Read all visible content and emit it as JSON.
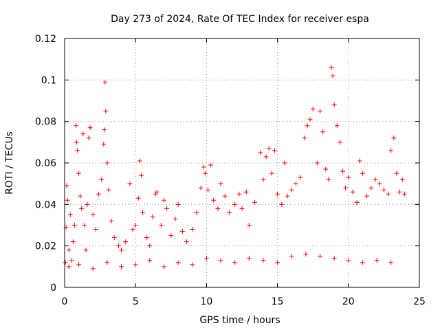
{
  "chart_data": {
    "type": "scatter",
    "title": "Day 273 of 2024, Rate Of TEC Index for receiver espa",
    "xlabel": "GPS time / hours",
    "ylabel": "ROTI / TECUs",
    "xlim": [
      0,
      25
    ],
    "ylim": [
      0,
      0.12
    ],
    "grid": true,
    "marker": "+",
    "x_ticks": [
      0,
      5,
      10,
      15,
      20,
      25
    ],
    "x_tick_labels": [
      "0",
      "5",
      "10",
      "15",
      "20",
      "25"
    ],
    "y_ticks": [
      0,
      0.02,
      0.04,
      0.06,
      0.08,
      0.1,
      0.12
    ],
    "y_tick_labels": [
      "0",
      "0.02",
      "0.04",
      "0.06",
      "0.08",
      "0.1",
      "0.12"
    ],
    "series": [
      {
        "name": "ROTI",
        "color": "#ff0000",
        "points": [
          [
            0.05,
            0.012
          ],
          [
            0.1,
            0.029
          ],
          [
            0.15,
            0.049
          ],
          [
            0.2,
            0.042
          ],
          [
            0.3,
            0.018
          ],
          [
            0.4,
            0.035
          ],
          [
            0.5,
            0.013
          ],
          [
            0.6,
            0.022
          ],
          [
            0.7,
            0.03
          ],
          [
            0.8,
            0.078
          ],
          [
            0.85,
            0.07
          ],
          [
            0.9,
            0.066
          ],
          [
            1.0,
            0.055
          ],
          [
            1.1,
            0.044
          ],
          [
            1.2,
            0.038
          ],
          [
            1.3,
            0.074
          ],
          [
            1.4,
            0.03
          ],
          [
            1.5,
            0.018
          ],
          [
            1.6,
            0.04
          ],
          [
            1.7,
            0.072
          ],
          [
            1.8,
            0.077
          ],
          [
            2.0,
            0.035
          ],
          [
            2.2,
            0.028
          ],
          [
            2.4,
            0.045
          ],
          [
            2.6,
            0.052
          ],
          [
            2.75,
            0.069
          ],
          [
            2.8,
            0.076
          ],
          [
            2.85,
            0.099
          ],
          [
            2.9,
            0.085
          ],
          [
            3.0,
            0.06
          ],
          [
            3.1,
            0.047
          ],
          [
            3.3,
            0.032
          ],
          [
            3.5,
            0.024
          ],
          [
            3.8,
            0.02
          ],
          [
            4.0,
            0.018
          ],
          [
            4.3,
            0.022
          ],
          [
            4.6,
            0.05
          ],
          [
            4.8,
            0.028
          ],
          [
            5.0,
            0.03
          ],
          [
            5.2,
            0.043
          ],
          [
            5.3,
            0.061
          ],
          [
            5.4,
            0.054
          ],
          [
            5.5,
            0.036
          ],
          [
            5.8,
            0.024
          ],
          [
            6.0,
            0.02
          ],
          [
            6.2,
            0.034
          ],
          [
            6.4,
            0.045
          ],
          [
            6.5,
            0.046
          ],
          [
            6.8,
            0.03
          ],
          [
            7.0,
            0.042
          ],
          [
            7.2,
            0.038
          ],
          [
            7.5,
            0.025
          ],
          [
            7.8,
            0.033
          ],
          [
            8.0,
            0.04
          ],
          [
            8.3,
            0.027
          ],
          [
            8.6,
            0.022
          ],
          [
            9.0,
            0.028
          ],
          [
            9.3,
            0.036
          ],
          [
            9.6,
            0.048
          ],
          [
            9.8,
            0.058
          ],
          [
            9.9,
            0.055
          ],
          [
            10.1,
            0.047
          ],
          [
            10.3,
            0.059
          ],
          [
            10.5,
            0.042
          ],
          [
            10.8,
            0.038
          ],
          [
            11.0,
            0.05
          ],
          [
            11.3,
            0.044
          ],
          [
            11.6,
            0.036
          ],
          [
            12.0,
            0.04
          ],
          [
            12.3,
            0.045
          ],
          [
            12.5,
            0.038
          ],
          [
            12.8,
            0.046
          ],
          [
            13.0,
            0.03
          ],
          [
            13.4,
            0.041
          ],
          [
            13.8,
            0.065
          ],
          [
            14.0,
            0.052
          ],
          [
            14.2,
            0.063
          ],
          [
            14.4,
            0.067
          ],
          [
            14.6,
            0.055
          ],
          [
            14.8,
            0.066
          ],
          [
            15.0,
            0.045
          ],
          [
            15.3,
            0.04
          ],
          [
            15.5,
            0.06
          ],
          [
            15.7,
            0.044
          ],
          [
            16.0,
            0.047
          ],
          [
            16.3,
            0.05
          ],
          [
            16.6,
            0.053
          ],
          [
            16.9,
            0.072
          ],
          [
            17.1,
            0.078
          ],
          [
            17.3,
            0.081
          ],
          [
            17.5,
            0.086
          ],
          [
            17.8,
            0.06
          ],
          [
            18.0,
            0.085
          ],
          [
            18.2,
            0.075
          ],
          [
            18.4,
            0.057
          ],
          [
            18.6,
            0.052
          ],
          [
            18.8,
            0.106
          ],
          [
            18.9,
            0.102
          ],
          [
            19.0,
            0.088
          ],
          [
            19.2,
            0.078
          ],
          [
            19.4,
            0.07
          ],
          [
            19.6,
            0.056
          ],
          [
            19.8,
            0.048
          ],
          [
            20.0,
            0.053
          ],
          [
            20.3,
            0.046
          ],
          [
            20.6,
            0.041
          ],
          [
            20.8,
            0.061
          ],
          [
            21.0,
            0.055
          ],
          [
            21.3,
            0.044
          ],
          [
            21.6,
            0.048
          ],
          [
            21.9,
            0.052
          ],
          [
            22.2,
            0.05
          ],
          [
            22.5,
            0.047
          ],
          [
            22.8,
            0.045
          ],
          [
            23.0,
            0.066
          ],
          [
            23.2,
            0.072
          ],
          [
            23.4,
            0.055
          ],
          [
            23.6,
            0.046
          ],
          [
            23.8,
            0.052
          ],
          [
            23.95,
            0.045
          ],
          [
            0.3,
            0.01
          ],
          [
            1.0,
            0.011
          ],
          [
            2.0,
            0.009
          ],
          [
            3.0,
            0.012
          ],
          [
            4.0,
            0.01
          ],
          [
            5.0,
            0.011
          ],
          [
            6.0,
            0.013
          ],
          [
            7.0,
            0.01
          ],
          [
            8.0,
            0.012
          ],
          [
            9.0,
            0.011
          ],
          [
            10.0,
            0.014
          ],
          [
            11.0,
            0.013
          ],
          [
            12.0,
            0.012
          ],
          [
            13.0,
            0.014
          ],
          [
            14.0,
            0.013
          ],
          [
            15.0,
            0.012
          ],
          [
            16.0,
            0.015
          ],
          [
            17.0,
            0.016
          ],
          [
            18.0,
            0.015
          ],
          [
            19.0,
            0.014
          ],
          [
            20.0,
            0.013
          ],
          [
            21.0,
            0.012
          ],
          [
            22.0,
            0.013
          ],
          [
            23.0,
            0.012
          ]
        ]
      }
    ]
  }
}
